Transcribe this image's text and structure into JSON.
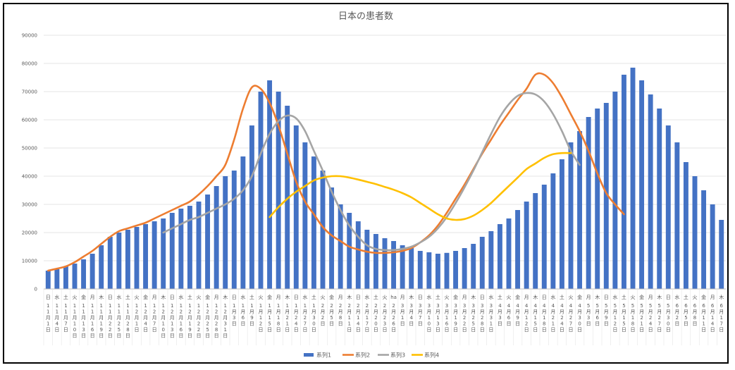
{
  "chart_data": {
    "type": "bar",
    "title": "日本の患者数",
    "ylim": [
      0,
      90000
    ],
    "yticks": [
      0,
      10000,
      20000,
      30000,
      40000,
      50000,
      60000,
      70000,
      80000,
      90000
    ],
    "grid": true,
    "legend_position": "bottom",
    "series_names": [
      "系列1",
      "系列2",
      "系列3",
      "系列4"
    ],
    "colors": {
      "系列1": "#4472C4",
      "系列2": "#ED7D31",
      "系列3": "#A5A5A5",
      "系列4": "#FFC000"
    },
    "x_labels": [
      {
        "top": "日",
        "bottom": "11月1日"
      },
      {
        "top": "水",
        "bottom": "11月4日"
      },
      {
        "top": "土",
        "bottom": "11月7日"
      },
      {
        "top": "火",
        "bottom": "11月10日"
      },
      {
        "top": "金",
        "bottom": "11月13日"
      },
      {
        "top": "月",
        "bottom": "11月16日"
      },
      {
        "top": "木",
        "bottom": "11月19日"
      },
      {
        "top": "日",
        "bottom": "11月22日"
      },
      {
        "top": "水",
        "bottom": "11月25日"
      },
      {
        "top": "土",
        "bottom": "11月28日"
      },
      {
        "top": "火",
        "bottom": "12月1日"
      },
      {
        "top": "金",
        "bottom": "12月4日"
      },
      {
        "top": "月",
        "bottom": "12月7日"
      },
      {
        "top": "木",
        "bottom": "12月10日"
      },
      {
        "top": "日",
        "bottom": "12月13日"
      },
      {
        "top": "水",
        "bottom": "12月16日"
      },
      {
        "top": "土",
        "bottom": "12月19日"
      },
      {
        "top": "火",
        "bottom": "12月22日"
      },
      {
        "top": "金",
        "bottom": "12月25日"
      },
      {
        "top": "月",
        "bottom": "12月28日"
      },
      {
        "top": "木",
        "bottom": "12月31日"
      },
      {
        "top": "日",
        "bottom": "1月3日"
      },
      {
        "top": "水",
        "bottom": "1月6日"
      },
      {
        "top": "土",
        "bottom": "1月9日"
      },
      {
        "top": "火",
        "bottom": "1月12日"
      },
      {
        "top": "金",
        "bottom": "1月15日"
      },
      {
        "top": "月",
        "bottom": "1月18日"
      },
      {
        "top": "木",
        "bottom": "1月21日"
      },
      {
        "top": "日",
        "bottom": "1月24日"
      },
      {
        "top": "水",
        "bottom": "1月27日"
      },
      {
        "top": "土",
        "bottom": "1月30日"
      },
      {
        "top": "火",
        "bottom": "2月2日"
      },
      {
        "top": "金",
        "bottom": "2月5日"
      },
      {
        "top": "月",
        "bottom": "2月8日"
      },
      {
        "top": "木",
        "bottom": "2月11日"
      },
      {
        "top": "日",
        "bottom": "2月14日"
      },
      {
        "top": "水",
        "bottom": "2月17日"
      },
      {
        "top": "土",
        "bottom": "2月20日"
      },
      {
        "top": "火",
        "bottom": "2月23日"
      },
      {
        "top": "ha",
        "bottom": "2月26日"
      },
      {
        "top": "月",
        "bottom": "3月1日"
      },
      {
        "top": "木",
        "bottom": "3月4日"
      },
      {
        "top": "日",
        "bottom": "3月7日"
      },
      {
        "top": "水",
        "bottom": "3月10日"
      },
      {
        "top": "土",
        "bottom": "3月13日"
      },
      {
        "top": "火",
        "bottom": "3月16日"
      },
      {
        "top": "金",
        "bottom": "3月19日"
      },
      {
        "top": "月",
        "bottom": "3月22日"
      },
      {
        "top": "木",
        "bottom": "3月25日"
      },
      {
        "top": "日",
        "bottom": "3月28日"
      },
      {
        "top": "水",
        "bottom": "3月31日"
      },
      {
        "top": "土",
        "bottom": "4月3日"
      },
      {
        "top": "火",
        "bottom": "4月6日"
      },
      {
        "top": "金",
        "bottom": "4月9日"
      },
      {
        "top": "月",
        "bottom": "4月12日"
      },
      {
        "top": "木",
        "bottom": "4月15日"
      },
      {
        "top": "日",
        "bottom": "4月18日"
      },
      {
        "top": "水",
        "bottom": "4月21日"
      },
      {
        "top": "土",
        "bottom": "4月24日"
      },
      {
        "top": "火",
        "bottom": "4月27日"
      },
      {
        "top": "金",
        "bottom": "4月30日"
      },
      {
        "top": "月",
        "bottom": "5月3日"
      },
      {
        "top": "木",
        "bottom": "5月6日"
      },
      {
        "top": "日",
        "bottom": "5月9日"
      },
      {
        "top": "水",
        "bottom": "5月12日"
      },
      {
        "top": "土",
        "bottom": "5月15日"
      },
      {
        "top": "火",
        "bottom": "5月18日"
      },
      {
        "top": "金",
        "bottom": "5月21日"
      },
      {
        "top": "月",
        "bottom": "5月24日"
      },
      {
        "top": "木",
        "bottom": "5月27日"
      },
      {
        "top": "日",
        "bottom": "5月30日"
      },
      {
        "top": "水",
        "bottom": "6月2日"
      },
      {
        "top": "土",
        "bottom": "6月5日"
      },
      {
        "top": "火",
        "bottom": "6月8日"
      },
      {
        "top": "金",
        "bottom": "6月11日"
      },
      {
        "top": "月",
        "bottom": "6月14日"
      },
      {
        "top": "木",
        "bottom": "6月17日"
      }
    ],
    "series": [
      {
        "name": "系列1",
        "type": "bar",
        "x_start_index": 0,
        "values": [
          6500,
          7000,
          8000,
          9000,
          10500,
          12500,
          15500,
          18500,
          20000,
          21000,
          22000,
          23000,
          24000,
          25000,
          27000,
          28500,
          29500,
          31000,
          33500,
          36500,
          40000,
          42000,
          47000,
          58000,
          70000,
          74000,
          70000,
          65000,
          58000,
          52000,
          47000,
          42000,
          36000,
          30000,
          27000,
          24000,
          21000,
          19500,
          18000,
          17000,
          15500,
          14500,
          13500,
          13000,
          12500,
          12800,
          13500,
          14500,
          16000,
          18500,
          20500,
          23000,
          25000,
          28000,
          31000,
          34000,
          37000,
          41000,
          46000,
          52000,
          56000,
          61000,
          64000,
          66000,
          70000,
          76000,
          78500,
          74000,
          69000,
          64000,
          58000,
          52000,
          45000,
          40000,
          35000,
          30000,
          24500
        ]
      },
      {
        "name": "系列2",
        "type": "line",
        "x_start_index": 0,
        "values": [
          6500,
          7200,
          8000,
          9500,
          11500,
          13500,
          16000,
          18500,
          20500,
          21500,
          22500,
          23500,
          25000,
          26500,
          28000,
          29500,
          31000,
          33500,
          36500,
          40000,
          44000,
          53000,
          64000,
          71500,
          71000,
          66000,
          58000,
          48000,
          38000,
          31000,
          26500,
          22000,
          19000,
          17000,
          15000,
          14000,
          13200,
          12800,
          12800,
          13000,
          13500,
          14500,
          16500,
          19000,
          22500,
          27000,
          32000,
          37000,
          42500,
          48000,
          53000,
          58000,
          62500,
          67000,
          71000,
          76000,
          76000,
          73000,
          68000,
          62000,
          56000,
          49000,
          41000,
          34000,
          30000,
          26500
        ]
      },
      {
        "name": "系列3",
        "type": "line",
        "x_start_index": 13,
        "values": [
          20000,
          21500,
          23000,
          24500,
          25500,
          27000,
          28500,
          30000,
          32000,
          35000,
          40000,
          48000,
          55000,
          59500,
          61500,
          60500,
          56000,
          49000,
          42000,
          34500,
          28000,
          22500,
          18500,
          15500,
          14200,
          13800,
          13800,
          14200,
          15000,
          16500,
          18500,
          21500,
          25500,
          30500,
          36000,
          42000,
          48500,
          55000,
          61000,
          65500,
          68500,
          69500,
          69000,
          66500,
          62000,
          56000,
          49000,
          44000
        ]
      },
      {
        "name": "系列4",
        "type": "line",
        "x_start_index": 25,
        "values": [
          25500,
          29000,
          32000,
          34500,
          36500,
          38500,
          39500,
          40000,
          40000,
          39500,
          38800,
          38000,
          37200,
          36200,
          35200,
          34000,
          32500,
          30500,
          28500,
          26500,
          25000,
          24500,
          24800,
          26000,
          28000,
          30500,
          33500,
          36500,
          39500,
          42500,
          44500,
          46500,
          47800,
          48200,
          48200
        ]
      }
    ]
  }
}
